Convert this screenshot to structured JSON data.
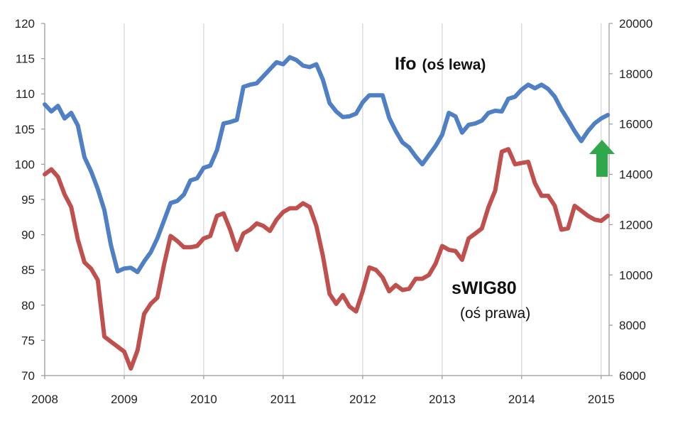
{
  "chart_data": {
    "type": "line",
    "title": "",
    "xlabel": "",
    "x_ticks": [
      "2008",
      "2009",
      "2010",
      "2011",
      "2012",
      "2013",
      "2014",
      "2015"
    ],
    "xlim": [
      2008,
      2015.1
    ],
    "y_left": {
      "ylim": [
        70,
        120
      ],
      "ticks": [
        "70",
        "75",
        "80",
        "85",
        "90",
        "95",
        "100",
        "105",
        "110",
        "115",
        "120"
      ]
    },
    "y_right": {
      "ylim": [
        6000,
        20000
      ],
      "ticks": [
        "6000",
        "8000",
        "10000",
        "12000",
        "14000",
        "16000",
        "18000",
        "20000"
      ]
    },
    "grid": "vertical",
    "series": [
      {
        "name": "Ifo",
        "axis": "left",
        "color": "#4f7fc4",
        "x": [
          2008.0,
          2008.083,
          2008.167,
          2008.25,
          2008.333,
          2008.417,
          2008.5,
          2008.583,
          2008.667,
          2008.75,
          2008.833,
          2008.917,
          2009.0,
          2009.083,
          2009.167,
          2009.25,
          2009.333,
          2009.417,
          2009.5,
          2009.583,
          2009.667,
          2009.75,
          2009.833,
          2009.917,
          2010.0,
          2010.083,
          2010.167,
          2010.25,
          2010.333,
          2010.417,
          2010.5,
          2010.583,
          2010.667,
          2010.75,
          2010.833,
          2010.917,
          2011.0,
          2011.083,
          2011.167,
          2011.25,
          2011.333,
          2011.417,
          2011.5,
          2011.583,
          2011.667,
          2011.75,
          2011.833,
          2011.917,
          2012.0,
          2012.083,
          2012.167,
          2012.25,
          2012.333,
          2012.417,
          2012.5,
          2012.583,
          2012.667,
          2012.75,
          2012.833,
          2012.917,
          2013.0,
          2013.083,
          2013.167,
          2013.25,
          2013.333,
          2013.417,
          2013.5,
          2013.583,
          2013.667,
          2013.75,
          2013.833,
          2013.917,
          2014.0,
          2014.083,
          2014.167,
          2014.25,
          2014.333,
          2014.417,
          2014.5,
          2014.583,
          2014.667,
          2014.75,
          2014.833,
          2014.917,
          2015.0,
          2015.083
        ],
        "values": [
          108.5,
          107.5,
          108.3,
          106.5,
          107.3,
          105.5,
          101.0,
          99.0,
          96.5,
          93.5,
          88.5,
          84.8,
          85.2,
          85.3,
          84.7,
          86.2,
          87.5,
          89.5,
          92.0,
          94.5,
          94.8,
          95.7,
          97.7,
          98.0,
          99.5,
          99.8,
          102.0,
          105.8,
          106.0,
          106.3,
          111.0,
          111.3,
          111.5,
          112.5,
          113.5,
          114.5,
          114.2,
          115.2,
          114.8,
          114.0,
          113.8,
          114.2,
          112.0,
          108.7,
          107.5,
          106.7,
          106.8,
          107.2,
          108.8,
          109.8,
          109.8,
          109.8,
          106.6,
          104.7,
          103.1,
          102.4,
          101.1,
          100.0,
          101.3,
          102.6,
          104.2,
          107.3,
          106.8,
          104.5,
          105.6,
          105.8,
          106.2,
          107.3,
          107.6,
          107.5,
          109.3,
          109.6,
          110.6,
          111.3,
          110.8,
          111.3,
          110.7,
          109.6,
          107.8,
          106.3,
          104.7,
          103.3,
          104.7,
          105.8,
          106.5,
          107.0
        ]
      },
      {
        "name": "sWIG80",
        "axis": "right",
        "color": "#c0504d",
        "x": [
          2008.0,
          2008.083,
          2008.167,
          2008.25,
          2008.333,
          2008.417,
          2008.5,
          2008.583,
          2008.667,
          2008.75,
          2008.833,
          2008.917,
          2009.0,
          2009.083,
          2009.167,
          2009.25,
          2009.333,
          2009.417,
          2009.5,
          2009.583,
          2009.667,
          2009.75,
          2009.833,
          2009.917,
          2010.0,
          2010.083,
          2010.167,
          2010.25,
          2010.333,
          2010.417,
          2010.5,
          2010.583,
          2010.667,
          2010.75,
          2010.833,
          2010.917,
          2011.0,
          2011.083,
          2011.167,
          2011.25,
          2011.333,
          2011.417,
          2011.5,
          2011.583,
          2011.667,
          2011.75,
          2011.833,
          2011.917,
          2012.0,
          2012.083,
          2012.167,
          2012.25,
          2012.333,
          2012.417,
          2012.5,
          2012.583,
          2012.667,
          2012.75,
          2012.833,
          2012.917,
          2013.0,
          2013.083,
          2013.167,
          2013.25,
          2013.333,
          2013.417,
          2013.5,
          2013.583,
          2013.667,
          2013.75,
          2013.833,
          2013.917,
          2014.0,
          2014.083,
          2014.167,
          2014.25,
          2014.333,
          2014.417,
          2014.5,
          2014.583,
          2014.667,
          2014.75,
          2014.833,
          2014.917,
          2015.0,
          2015.083
        ],
        "values": [
          14000,
          14200,
          13900,
          13200,
          12700,
          11400,
          10500,
          10250,
          9800,
          7550,
          7350,
          7150,
          6950,
          6280,
          7000,
          8450,
          8850,
          9100,
          10400,
          11550,
          11350,
          11100,
          11100,
          11150,
          11450,
          11550,
          12350,
          12450,
          11800,
          11000,
          11650,
          11800,
          12050,
          11950,
          11750,
          12200,
          12500,
          12650,
          12650,
          12850,
          12700,
          11950,
          10750,
          9250,
          8850,
          9200,
          8750,
          8550,
          9350,
          10300,
          10200,
          9900,
          9350,
          9600,
          9400,
          9450,
          9850,
          9850,
          10000,
          10450,
          11150,
          11000,
          10950,
          10600,
          11450,
          11650,
          11850,
          12700,
          13350,
          14900,
          15000,
          14400,
          14450,
          14500,
          13650,
          13150,
          13150,
          12750,
          11800,
          11850,
          12750,
          12550,
          12350,
          12200,
          12150,
          12350
        ]
      }
    ],
    "annotations": {
      "ifo_name": "Ifo",
      "ifo_axis_note": "(oś lewa)",
      "swig_name": "sWIG80",
      "swig_axis_note": "(oś prawa)",
      "arrow": {
        "direction": "up",
        "color": "#2ea84a"
      }
    }
  }
}
